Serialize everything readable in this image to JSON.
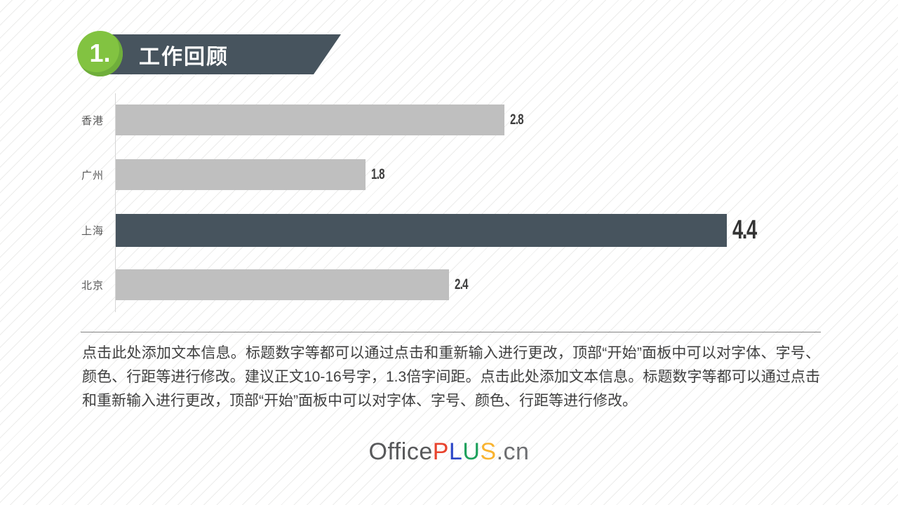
{
  "slide": {
    "section_number": "1.",
    "title": "工作回顾"
  },
  "chart_data": {
    "type": "bar",
    "orientation": "horizontal",
    "categories": [
      "香港",
      "广州",
      "上海",
      "北京"
    ],
    "values": [
      2.8,
      1.8,
      4.4,
      2.4
    ],
    "value_labels": [
      "2.8",
      "1.8",
      "4.4",
      "2.4"
    ],
    "highlighted_category": "上海",
    "title": "",
    "xlabel": "",
    "ylabel": "",
    "xlim": [
      0,
      4.4
    ],
    "grid": false,
    "legend": false,
    "bar_color": "#bfbfbf",
    "highlight_color": "#47545e"
  },
  "body_text": "点击此处添加文本信息。标题数字等都可以通过点击和重新输入进行更改，顶部“开始”面板中可以对字体、字号、颜色、行距等进行修改。建议正文10-16号字，1.3倍字间距。点击此处添加文本信息。标题数字等都可以通过点击和重新输入进行更改，顶部“开始”面板中可以对字体、字号、颜色、行距等进行修改。",
  "footer_logo": {
    "parts": [
      {
        "text": "Office",
        "color": "#58595b"
      },
      {
        "text": "P",
        "color": "#e8432d"
      },
      {
        "text": "L",
        "color": "#2c46c7"
      },
      {
        "text": "U",
        "color": "#1fa15d"
      },
      {
        "text": "S",
        "color": "#f9b32f"
      },
      {
        "text": ".cn",
        "color": "#6d6e71"
      }
    ]
  },
  "theme": {
    "accent_green": "#82c341",
    "slate": "#47545e",
    "stripe_color": "#ececeb"
  }
}
